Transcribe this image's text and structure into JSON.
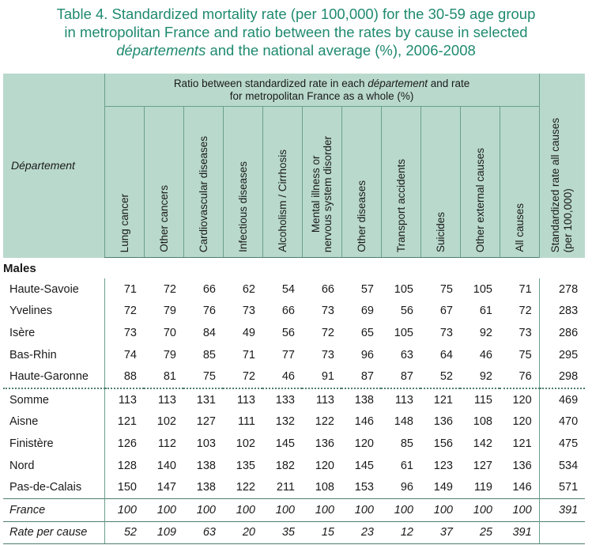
{
  "title": {
    "line1": "Table 4. Standardized mortality rate (per 100,000) for the 30-59 age group",
    "line2": "in metropolitan France and ratio between the rates by cause in selected",
    "line3_italic": "départements",
    "line3_rest": " and the national average (%), 2006-2008"
  },
  "header": {
    "departement": "Département",
    "group_pre": "Ratio between standardized rate in each ",
    "group_italic": "département",
    "group_post": " and rate",
    "group_line2": "for metropolitan France as a whole (%)",
    "causes": [
      [
        "Lung cancer"
      ],
      [
        "Other cancers"
      ],
      [
        "Cardiovascular diseases"
      ],
      [
        "Infectious diseases"
      ],
      [
        "Alcoholism / Cirrhosis"
      ],
      [
        "Mental illness or",
        "nervous system disorder"
      ],
      [
        "Other diseases"
      ],
      [
        "Transport accidents"
      ],
      [
        "Suicides"
      ],
      [
        "Other external causes"
      ],
      [
        "All causes"
      ]
    ],
    "std_line1": "Standardized rate all causes",
    "std_line2": "(per 100,000)"
  },
  "section": "Males",
  "rows": [
    {
      "name": "Haute-Savoie",
      "values": [
        "71",
        "72",
        "66",
        "62",
        "54",
        "66",
        "57",
        "105",
        "75",
        "105",
        "71"
      ],
      "std": "278"
    },
    {
      "name": "Yvelines",
      "values": [
        "72",
        "79",
        "76",
        "73",
        "66",
        "73",
        "69",
        "56",
        "67",
        "61",
        "72"
      ],
      "std": "283"
    },
    {
      "name": "Isère",
      "values": [
        "73",
        "70",
        "84",
        "49",
        "56",
        "72",
        "65",
        "105",
        "73",
        "92",
        "73"
      ],
      "std": "286"
    },
    {
      "name": "Bas-Rhin",
      "values": [
        "74",
        "79",
        "85",
        "71",
        "77",
        "73",
        "96",
        "63",
        "64",
        "46",
        "75"
      ],
      "std": "295"
    },
    {
      "name": "Haute-Garonne",
      "values": [
        "88",
        "81",
        "75",
        "72",
        "46",
        "91",
        "87",
        "87",
        "52",
        "92",
        "76"
      ],
      "std": "298"
    },
    {
      "name": "Somme",
      "values": [
        "113",
        "113",
        "131",
        "113",
        "133",
        "113",
        "138",
        "113",
        "121",
        "115",
        "120"
      ],
      "std": "469"
    },
    {
      "name": "Aisne",
      "values": [
        "121",
        "102",
        "127",
        "111",
        "132",
        "122",
        "146",
        "148",
        "136",
        "108",
        "120"
      ],
      "std": "470"
    },
    {
      "name": "Finistère",
      "values": [
        "126",
        "112",
        "103",
        "102",
        "145",
        "136",
        "120",
        "85",
        "156",
        "142",
        "121"
      ],
      "std": "475"
    },
    {
      "name": "Nord",
      "values": [
        "128",
        "140",
        "138",
        "135",
        "182",
        "120",
        "145",
        "61",
        "123",
        "127",
        "136"
      ],
      "std": "534"
    },
    {
      "name": "Pas-de-Calais",
      "values": [
        "150",
        "147",
        "138",
        "122",
        "211",
        "108",
        "153",
        "96",
        "149",
        "119",
        "146"
      ],
      "std": "571"
    }
  ],
  "france": {
    "name": "France",
    "values": [
      "100",
      "100",
      "100",
      "100",
      "100",
      "100",
      "100",
      "100",
      "100",
      "100",
      "100"
    ],
    "std": "391"
  },
  "rate": {
    "name": "Rate per cause",
    "values": [
      "52",
      "109",
      "63",
      "20",
      "35",
      "15",
      "23",
      "12",
      "37",
      "25",
      "391"
    ],
    "std": ""
  },
  "colors": {
    "title": "#1f8a70",
    "header_bg": "#b9d9cd",
    "rule": "#4f7e6e"
  }
}
